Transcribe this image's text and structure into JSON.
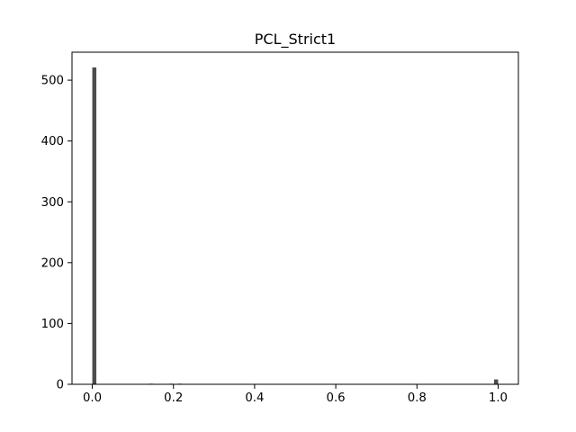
{
  "chart_data": {
    "type": "bar",
    "title": "PCL_Strict1",
    "xlabel": "",
    "ylabel": "",
    "xlim": [
      -0.05,
      1.05
    ],
    "ylim": [
      0,
      546
    ],
    "grid": false,
    "bin_width": 0.01,
    "bins": [
      {
        "x": 0.0,
        "count": 521
      },
      {
        "x": 0.14,
        "count": 1
      },
      {
        "x": 0.19,
        "count": 1
      },
      {
        "x": 0.21,
        "count": 1
      },
      {
        "x": 0.99,
        "count": 8
      }
    ],
    "xticks": [
      {
        "value": 0.0,
        "label": "0.0"
      },
      {
        "value": 0.2,
        "label": "0.2"
      },
      {
        "value": 0.4,
        "label": "0.4"
      },
      {
        "value": 0.6,
        "label": "0.6"
      },
      {
        "value": 0.8,
        "label": "0.8"
      },
      {
        "value": 1.0,
        "label": "1.0"
      }
    ],
    "yticks": [
      {
        "value": 0,
        "label": "0"
      },
      {
        "value": 100,
        "label": "100"
      },
      {
        "value": 200,
        "label": "200"
      },
      {
        "value": 300,
        "label": "300"
      },
      {
        "value": 400,
        "label": "400"
      },
      {
        "value": 500,
        "label": "500"
      }
    ],
    "colors": {
      "bar": "#4d4d4d",
      "axis": "#000000"
    }
  }
}
